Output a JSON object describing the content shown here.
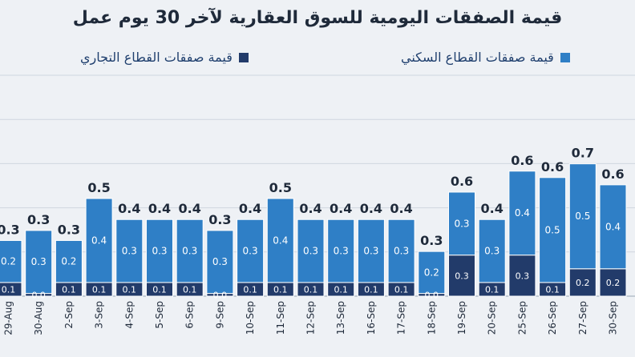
{
  "chart_data": {
    "type": "bar",
    "stacked": true,
    "title": "قيمة الصفقات اليومية للسوق العقارية لآخر 30 يوم عمل",
    "categories": [
      "29-Aug",
      "30-Aug",
      "2-Sep",
      "3-Sep",
      "4-Sep",
      "5-Sep",
      "6-Sep",
      "9-Sep",
      "10-Sep",
      "11-Sep",
      "12-Sep",
      "13-Sep",
      "16-Sep",
      "17-Sep",
      "18-Sep",
      "19-Sep",
      "20-Sep",
      "25-Sep",
      "26-Sep",
      "27-Sep",
      "30-Sep"
    ],
    "series": [
      {
        "name": "قيمة صفقات القطاع التجاري",
        "color": "#223b6a",
        "values": [
          0.1,
          0.0,
          0.1,
          0.1,
          0.1,
          0.1,
          0.1,
          0.0,
          0.1,
          0.1,
          0.1,
          0.1,
          0.1,
          0.1,
          0.0,
          0.3,
          0.1,
          0.3,
          0.1,
          0.2,
          0.2
        ],
        "labels": [
          "0.1",
          "0.0",
          "0.1",
          "0.1",
          "0.1",
          "0.1",
          "0.1",
          "0.0",
          "0.1",
          "0.1",
          "0.1",
          "0.1",
          "0.1",
          "0.1",
          "0.0",
          "0.3",
          "0.1",
          "0.3",
          "0.1",
          "0.2",
          "0.2"
        ]
      },
      {
        "name": "قيمة صفقات القطاع السكني",
        "color": "#2f7fc6",
        "values": [
          0.2,
          0.3,
          0.2,
          0.4,
          0.3,
          0.3,
          0.3,
          0.3,
          0.3,
          0.4,
          0.3,
          0.3,
          0.3,
          0.3,
          0.2,
          0.3,
          0.3,
          0.4,
          0.5,
          0.5,
          0.4
        ],
        "labels": [
          "0.2",
          "0.3",
          "0.2",
          "0.4",
          "0.3",
          "0.3",
          "0.3",
          "0.3",
          "0.3",
          "0.4",
          "0.3",
          "0.3",
          "0.3",
          "0.3",
          "0.2",
          "0.3",
          "0.3",
          "0.4",
          "0.5",
          "0.5",
          "0.4"
        ]
      }
    ],
    "totals": [
      "0.3",
      "0.3",
      "0.3",
      "0.5",
      "0.4",
      "0.4",
      "0.4",
      "0.3",
      "0.4",
      "0.5",
      "0.4",
      "0.4",
      "0.4",
      "0.4",
      "0.3",
      "0.6",
      "0.4",
      "0.6",
      "0.6",
      "0.7",
      "0.6"
    ],
    "ylim": [
      0,
      1.1
    ],
    "grid": true,
    "legend_position": "top"
  }
}
